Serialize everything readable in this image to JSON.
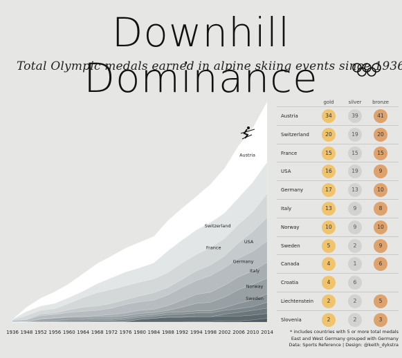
{
  "title": "Downhill Dominance",
  "subtitle": "Total Olympic medals earned in alpine skiing events since 1936",
  "colors": {
    "background": "#e6e6e4",
    "gold": "#f0c46d",
    "silver": "#d2d2d0",
    "bronze": "#dea26d",
    "top_band": "#ffffff",
    "bottom_band": "#4d5b62"
  },
  "icons": [
    "olympic-rings-icon",
    "skier-icon"
  ],
  "chart_data": {
    "type": "area",
    "stacked": true,
    "x": [
      "1936",
      "1948",
      "1952",
      "1956",
      "1960",
      "1964",
      "1968",
      "1972",
      "1976",
      "1980",
      "1984",
      "1988",
      "1992",
      "1994",
      "1998",
      "2002",
      "2006",
      "2010",
      "2014"
    ],
    "ylim": [
      0,
      400
    ],
    "series": [
      {
        "name": "Slovenia",
        "values": [
          0,
          0,
          0,
          0,
          0,
          0,
          0,
          0,
          0,
          0,
          0,
          0,
          0,
          1,
          1,
          2,
          2,
          4,
          7
        ]
      },
      {
        "name": "Liechtenstein",
        "values": [
          0,
          0,
          0,
          0,
          0,
          0,
          0,
          0,
          1,
          5,
          7,
          9,
          9,
          9,
          9,
          9,
          9,
          9,
          9
        ]
      },
      {
        "name": "Croatia",
        "values": [
          0,
          0,
          0,
          0,
          0,
          0,
          0,
          0,
          0,
          0,
          0,
          0,
          0,
          0,
          0,
          4,
          7,
          9,
          10
        ]
      },
      {
        "name": "Canada",
        "values": [
          0,
          0,
          0,
          1,
          2,
          2,
          3,
          3,
          4,
          4,
          4,
          5,
          6,
          7,
          7,
          7,
          7,
          7,
          11
        ]
      },
      {
        "name": "Sweden",
        "values": [
          0,
          0,
          2,
          2,
          3,
          3,
          3,
          3,
          3,
          3,
          3,
          4,
          4,
          4,
          4,
          5,
          10,
          13,
          16
        ]
      },
      {
        "name": "Norway",
        "values": [
          0,
          1,
          3,
          4,
          4,
          4,
          4,
          4,
          4,
          4,
          4,
          4,
          9,
          14,
          16,
          20,
          26,
          29,
          29
        ]
      },
      {
        "name": "Italy",
        "values": [
          0,
          0,
          1,
          1,
          1,
          2,
          2,
          4,
          5,
          6,
          6,
          9,
          13,
          17,
          19,
          22,
          24,
          25,
          30
        ]
      },
      {
        "name": "Germany",
        "values": [
          3,
          3,
          6,
          6,
          8,
          9,
          10,
          12,
          16,
          16,
          17,
          20,
          24,
          26,
          31,
          33,
          35,
          37,
          40
        ]
      },
      {
        "name": "USA",
        "values": [
          0,
          1,
          3,
          3,
          5,
          8,
          8,
          9,
          9,
          11,
          14,
          14,
          15,
          18,
          20,
          22,
          29,
          37,
          44
        ]
      },
      {
        "name": "France",
        "values": [
          1,
          7,
          7,
          8,
          12,
          18,
          25,
          26,
          26,
          26,
          26,
          28,
          31,
          31,
          33,
          33,
          35,
          37,
          45
        ]
      },
      {
        "name": "Switzerland",
        "values": [
          1,
          8,
          8,
          10,
          11,
          12,
          17,
          22,
          26,
          27,
          30,
          41,
          43,
          46,
          47,
          48,
          50,
          56,
          59
        ]
      },
      {
        "name": "Austria",
        "values": [
          0,
          8,
          15,
          22,
          26,
          33,
          38,
          41,
          45,
          48,
          50,
          57,
          60,
          63,
          72,
          84,
          98,
          102,
          114
        ]
      }
    ]
  },
  "table": {
    "headers": [
      "gold",
      "silver",
      "bronze"
    ],
    "rows": [
      {
        "country": "Austria",
        "gold": "34",
        "silver": "39",
        "bronze": "41"
      },
      {
        "country": "Switzerland",
        "gold": "20",
        "silver": "19",
        "bronze": "20"
      },
      {
        "country": "France",
        "gold": "15",
        "silver": "15",
        "bronze": "15"
      },
      {
        "country": "USA",
        "gold": "16",
        "silver": "19",
        "bronze": "9"
      },
      {
        "country": "Germany",
        "gold": "17",
        "silver": "13",
        "bronze": "10"
      },
      {
        "country": "Italy",
        "gold": "13",
        "silver": "9",
        "bronze": "8"
      },
      {
        "country": "Norway",
        "gold": "10",
        "silver": "9",
        "bronze": "10"
      },
      {
        "country": "Sweden",
        "gold": "5",
        "silver": "2",
        "bronze": "9"
      },
      {
        "country": "Canada",
        "gold": "4",
        "silver": "1",
        "bronze": "6"
      },
      {
        "country": "Croatia",
        "gold": "4",
        "silver": "6",
        "bronze": ""
      },
      {
        "country": "Liechtenstein",
        "gold": "2",
        "silver": "2",
        "bronze": "5"
      },
      {
        "country": "Slovenia",
        "gold": "2",
        "silver": "2",
        "bronze": "3"
      }
    ]
  },
  "notes": [
    "* includes countries with 5 or more total medals",
    "East and West Germany grouped with Germany",
    "Data: Sports Reference | Design: @keith_dykstra"
  ]
}
